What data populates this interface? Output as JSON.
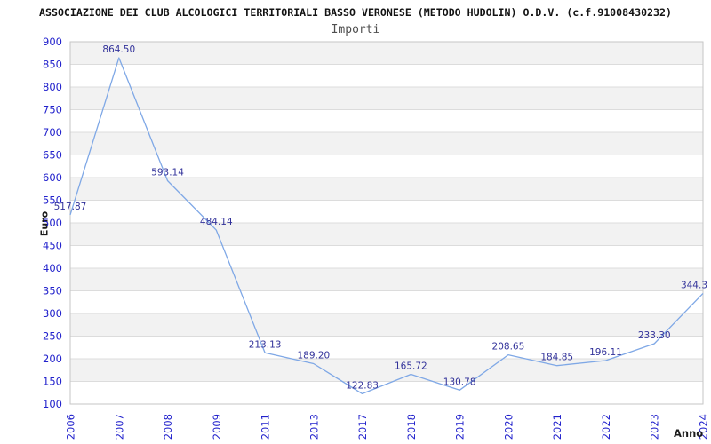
{
  "chart_data": {
    "type": "line",
    "title": "ASSOCIAZIONE DEI CLUB ALCOLOGICI TERRITORIALI BASSO VERONESE (METODO HUDOLIN) O.D.V. (c.f.91008430232)",
    "subtitle": "Importi",
    "xlabel": "Anno",
    "ylabel": "Euro",
    "categories": [
      "2006",
      "2007",
      "2008",
      "2009",
      "2011",
      "2013",
      "2017",
      "2018",
      "2019",
      "2020",
      "2021",
      "2022",
      "2023",
      "2024"
    ],
    "values": [
      517.87,
      864.5,
      593.14,
      484.14,
      213.13,
      189.2,
      122.83,
      165.72,
      130.78,
      208.65,
      184.85,
      196.11,
      233.3,
      344.3
    ],
    "value_labels": [
      "517.87",
      "864.50",
      "593.14",
      "484.14",
      "213.13",
      "189.20",
      "122.83",
      "165.72",
      "130.78",
      "208.65",
      "184.85",
      "196.11",
      "233.30",
      "344.3"
    ],
    "ylim": [
      100,
      900
    ],
    "ytick_step": 50,
    "grid": true,
    "legend": "none",
    "colors": {
      "line": "#7fa8e6",
      "tick_label": "#2222cc",
      "value_label": "#32329a",
      "band_gray": "#f2f2f2",
      "band_white": "#ffffff",
      "grid_line": "#dcdcdc",
      "plot_border": "#c6c6c6",
      "title": "#131313",
      "subtitle": "#4f4f4f",
      "axis_title": "#1c1c1c"
    }
  }
}
